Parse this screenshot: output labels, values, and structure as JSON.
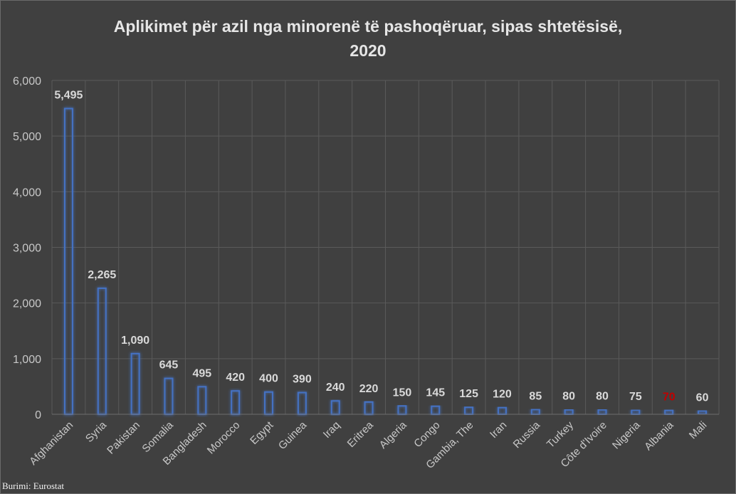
{
  "chart_data": {
    "type": "bar",
    "title": "Aplikimet për azil nga minorenë të pashoqëruar, sipas shtetësisë, 2020",
    "categories": [
      "Afghanistan",
      "Syria",
      "Pakistan",
      "Somalia",
      "Bangladesh",
      "Morocco",
      "Egypt",
      "Guinea",
      "Iraq",
      "Eritrea",
      "Algeria",
      "Congo",
      "Gambia, The",
      "Iran",
      "Russia",
      "Turkey",
      "Côte d'Ivoire",
      "Nigeria",
      "Albania",
      "Mali"
    ],
    "values": [
      5495,
      2265,
      1090,
      645,
      495,
      420,
      400,
      390,
      240,
      220,
      150,
      145,
      125,
      120,
      85,
      80,
      80,
      75,
      70,
      60
    ],
    "data_labels": [
      "5,495",
      "2,265",
      "1,090",
      "645",
      "495",
      "420",
      "400",
      "390",
      "240",
      "220",
      "150",
      "145",
      "125",
      "120",
      "85",
      "80",
      "80",
      "75",
      "70",
      "60"
    ],
    "highlight_category": "Albania",
    "highlight_color": "#c00000",
    "bar_color": "#4472c4",
    "ylim": [
      0,
      6000
    ],
    "y_ticks": [
      "0",
      "1,000",
      "2,000",
      "3,000",
      "4,000",
      "5,000",
      "6,000"
    ],
    "grid": true,
    "xlabel": "",
    "ylabel": ""
  },
  "source": "Burimi: Eurostat"
}
